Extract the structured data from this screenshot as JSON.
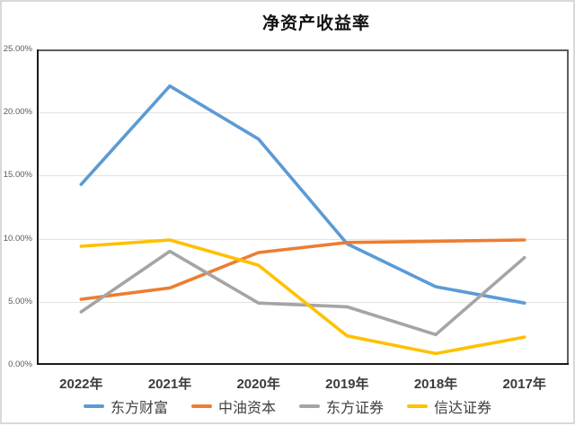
{
  "chart_data": {
    "type": "line",
    "title": "净资产收益率",
    "categories": [
      "2022年",
      "2021年",
      "2020年",
      "2019年",
      "2018年",
      "2017年"
    ],
    "series": [
      {
        "name": "东方财富",
        "color": "#5B9BD5",
        "values": [
          14.3,
          22.1,
          17.9,
          9.6,
          6.2,
          4.9
        ]
      },
      {
        "name": "中油资本",
        "color": "#ED7D31",
        "values": [
          5.2,
          6.1,
          8.9,
          9.7,
          9.8,
          9.9
        ]
      },
      {
        "name": "东方证券",
        "color": "#A5A5A5",
        "values": [
          4.2,
          9.0,
          4.9,
          4.6,
          2.4,
          8.5
        ]
      },
      {
        "name": "信达证券",
        "color": "#FFC000",
        "values": [
          9.4,
          9.9,
          7.9,
          2.3,
          0.9,
          2.2
        ]
      }
    ],
    "ylim": [
      0,
      25
    ],
    "ytick_step": 5,
    "ytick_labels": [
      "0.00%",
      "5.00%",
      "10.00%",
      "15.00%",
      "20.00%",
      "25.00%"
    ],
    "xlabel": "",
    "ylabel": "",
    "grid": true,
    "legend_position": "bottom",
    "colors": {
      "axis": "#1a1a1a",
      "plot_border": "#4d4d4d",
      "gridline": "#e2e2e2",
      "ytick_text": "#595959",
      "xtick_text": "#3b3b3b",
      "legend_text": "#404040",
      "title_text": "#111111",
      "page_frame": "#d9d9d9"
    }
  }
}
